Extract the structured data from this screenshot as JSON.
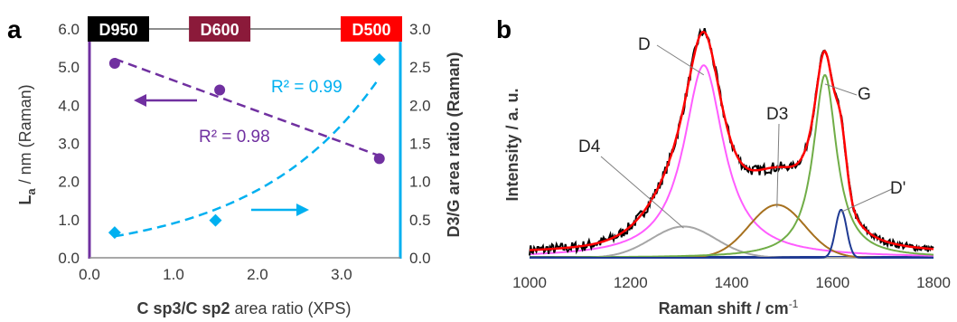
{
  "chart_data": [
    {
      "type": "scatter",
      "panel": "a",
      "xlabel": "C sp3/C sp2 area ratio (XPS)",
      "ylabel_left": "La / nm (Raman)",
      "ylabel_right": "D3/G area ratio (Raman)",
      "xlim": [
        0.0,
        3.7
      ],
      "ylim_left": [
        0.0,
        6.0
      ],
      "ylim_right": [
        0.0,
        3.0
      ],
      "xticks": [
        "0.0",
        "1.0",
        "2.0",
        "3.0"
      ],
      "yticks_left": [
        "0.0",
        "1.0",
        "2.0",
        "3.0",
        "4.0",
        "5.0",
        "6.0"
      ],
      "yticks_right": [
        "0.0",
        "0.5",
        "1.0",
        "1.5",
        "2.0",
        "2.5",
        "3.0"
      ],
      "series": [
        {
          "axis": "left",
          "color": "#7030a0",
          "marker": "circle",
          "x": [
            0.3,
            1.55,
            3.45
          ],
          "y": [
            5.1,
            4.4,
            2.6
          ],
          "fit": "linear",
          "fit_label": "R² = 0.98"
        },
        {
          "axis": "right",
          "color": "#00b0f0",
          "marker": "diamond",
          "x": [
            0.3,
            1.5,
            3.45
          ],
          "y": [
            0.33,
            0.49,
            2.6
          ],
          "fit": "exponential",
          "fit_label": "R² = 0.99"
        }
      ],
      "sample_tags": [
        {
          "label": "D950",
          "x": 0.3,
          "color": "#000000"
        },
        {
          "label": "D600",
          "x": 1.55,
          "color": "#8b1a3a"
        },
        {
          "label": "D500",
          "x": 3.45,
          "color": "#ff0000"
        }
      ],
      "arrows": [
        {
          "target": "left",
          "color": "#7030a0"
        },
        {
          "target": "right",
          "color": "#00b0f0"
        }
      ]
    },
    {
      "type": "line",
      "panel": "b",
      "xlabel": "Raman shift / cm-1",
      "ylabel": "Intensity / a. u.",
      "xlim": [
        1000,
        1800
      ],
      "xticks": [
        "1000",
        "1200",
        "1400",
        "1600",
        "1800"
      ],
      "peaks": [
        {
          "name": "D",
          "center": 1345,
          "amplitude": 0.8,
          "hwhm": 48,
          "shape": "lorentzian",
          "color": "#ff5cff"
        },
        {
          "name": "D4",
          "center": 1305,
          "amplitude": 0.13,
          "hwhm": 75,
          "shape": "gaussian",
          "color": "#a6a6a6"
        },
        {
          "name": "D3",
          "center": 1490,
          "amplitude": 0.22,
          "hwhm": 65,
          "shape": "gaussian",
          "color": "#a6701e"
        },
        {
          "name": "G",
          "center": 1585,
          "amplitude": 0.76,
          "hwhm": 28,
          "shape": "lorentzian",
          "color": "#70ad47"
        },
        {
          "name": "D'",
          "center": 1617,
          "amplitude": 0.2,
          "hwhm": 13,
          "shape": "gaussian",
          "color": "#1f3a93"
        }
      ],
      "envelope_color": "#ff0000",
      "measured_color": "#000000",
      "baseline_color": "#1f3a93"
    }
  ],
  "labels": {
    "panel_a": "a",
    "panel_b": "b",
    "r2_left": "R² = 0.98",
    "r2_right": "R² = 0.99",
    "b_xlabel_main": "Raman shift / cm",
    "b_xlabel_sup": "-1",
    "b_ylabel": "Intensity / a. u.",
    "a_xlabel_bold": "C sp3/C sp2",
    "a_xlabel_rest": " area ratio (XPS)",
    "a_ylabel_L": "L",
    "a_ylabel_sub": "a",
    "a_ylabel_rest": " / nm (Raman)",
    "a_ylabel_right": "D3/G area ratio (Raman)"
  }
}
